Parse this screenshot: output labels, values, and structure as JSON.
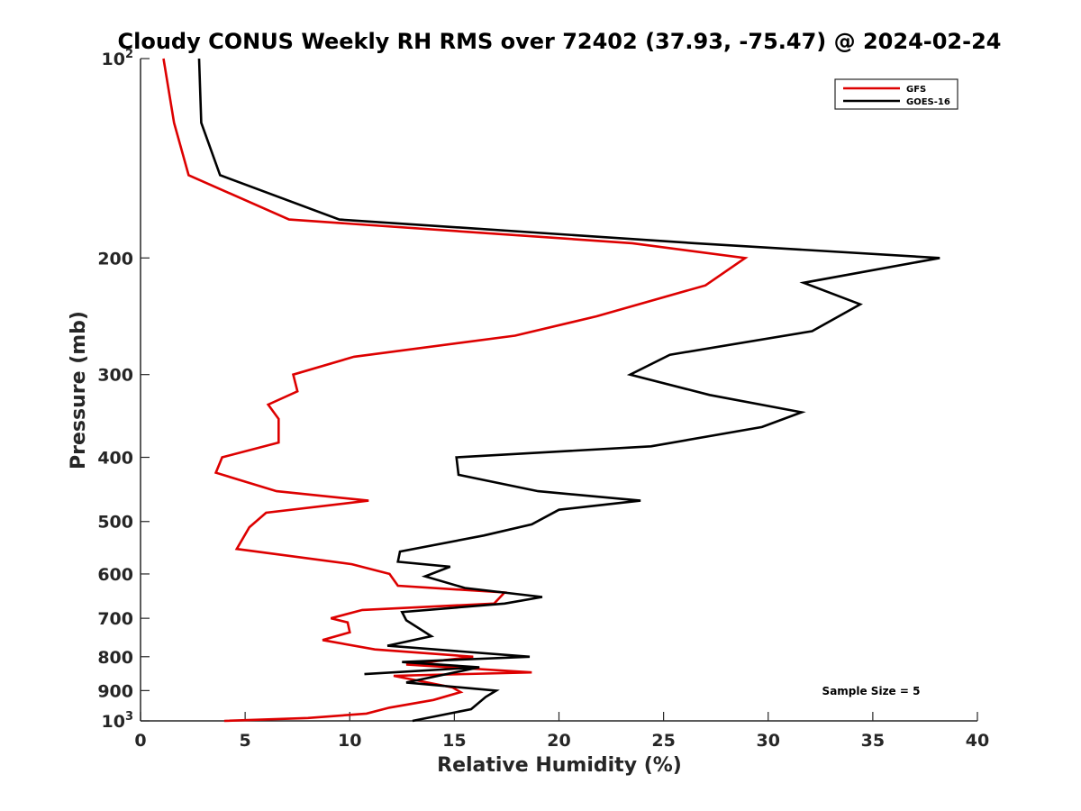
{
  "chart_data": {
    "type": "line",
    "title": "Cloudy CONUS Weekly RH RMS over 72402 (37.93, -75.47) @ 2024-02-24",
    "xlabel": "Relative Humidity (%)",
    "ylabel": "Pressure (mb)",
    "xlim": [
      0,
      40
    ],
    "ylim": [
      100,
      1000
    ],
    "y_scale": "log",
    "y_reversed": true,
    "grid": false,
    "legend_position": "top-right",
    "x_ticks": [
      {
        "value": 0,
        "label": "0"
      },
      {
        "value": 5,
        "label": "5"
      },
      {
        "value": 10,
        "label": "10"
      },
      {
        "value": 15,
        "label": "15"
      },
      {
        "value": 20,
        "label": "20"
      },
      {
        "value": 25,
        "label": "25"
      },
      {
        "value": 30,
        "label": "30"
      },
      {
        "value": 35,
        "label": "35"
      },
      {
        "value": 40,
        "label": "40"
      }
    ],
    "y_ticks": [
      {
        "value": 100,
        "base": "10",
        "exp": "2"
      },
      {
        "value": 200,
        "label": "200"
      },
      {
        "value": 300,
        "label": "300"
      },
      {
        "value": 400,
        "label": "400"
      },
      {
        "value": 500,
        "label": "500"
      },
      {
        "value": 600,
        "label": "600"
      },
      {
        "value": 700,
        "label": "700"
      },
      {
        "value": 800,
        "label": "800"
      },
      {
        "value": 900,
        "label": "900"
      },
      {
        "value": 1000,
        "base": "10",
        "exp": "3"
      }
    ],
    "annotation": "Sample Size = 5",
    "series": [
      {
        "name": "GFS",
        "color": "#dd0000",
        "points": [
          [
            1.1,
            100
          ],
          [
            1.6,
            125
          ],
          [
            2.3,
            150
          ],
          [
            7.1,
            175
          ],
          [
            23.5,
            190
          ],
          [
            28.9,
            200
          ],
          [
            27.0,
            220
          ],
          [
            21.8,
            245
          ],
          [
            17.9,
            262
          ],
          [
            10.2,
            282
          ],
          [
            7.3,
            300
          ],
          [
            7.5,
            318
          ],
          [
            6.1,
            333
          ],
          [
            6.6,
            350
          ],
          [
            6.6,
            380
          ],
          [
            3.9,
            400
          ],
          [
            3.6,
            422
          ],
          [
            6.5,
            450
          ],
          [
            10.9,
            465
          ],
          [
            6.0,
            485
          ],
          [
            5.2,
            510
          ],
          [
            4.6,
            550
          ],
          [
            10.1,
            580
          ],
          [
            11.9,
            600
          ],
          [
            12.3,
            625
          ],
          [
            17.4,
            640
          ],
          [
            16.9,
            665
          ],
          [
            10.6,
            680
          ],
          [
            9.1,
            700
          ],
          [
            9.9,
            710
          ],
          [
            10.0,
            735
          ],
          [
            8.7,
            755
          ],
          [
            11.2,
            780
          ],
          [
            15.9,
            800
          ],
          [
            14.5,
            810
          ],
          [
            12.7,
            822
          ],
          [
            18.7,
            845
          ],
          [
            12.1,
            855
          ],
          [
            14.9,
            890
          ],
          [
            15.3,
            905
          ],
          [
            14.0,
            930
          ],
          [
            11.9,
            955
          ],
          [
            10.8,
            975
          ],
          [
            8.0,
            990
          ],
          [
            4.0,
            1000
          ]
        ]
      },
      {
        "name": "GOES-16",
        "color": "#000000",
        "points": [
          [
            2.8,
            100
          ],
          [
            2.9,
            125
          ],
          [
            3.8,
            150
          ],
          [
            9.5,
            175
          ],
          [
            26.5,
            190
          ],
          [
            38.2,
            200
          ],
          [
            31.7,
            218
          ],
          [
            34.4,
            235
          ],
          [
            32.1,
            258
          ],
          [
            25.3,
            280
          ],
          [
            23.4,
            300
          ],
          [
            27.2,
            322
          ],
          [
            31.6,
            342
          ],
          [
            29.7,
            360
          ],
          [
            24.4,
            385
          ],
          [
            15.1,
            400
          ],
          [
            15.2,
            425
          ],
          [
            19.0,
            450
          ],
          [
            23.9,
            465
          ],
          [
            20.0,
            480
          ],
          [
            18.7,
            505
          ],
          [
            16.4,
            525
          ],
          [
            12.4,
            555
          ],
          [
            12.3,
            575
          ],
          [
            14.8,
            585
          ],
          [
            13.6,
            605
          ],
          [
            15.5,
            630
          ],
          [
            19.2,
            650
          ],
          [
            17.4,
            665
          ],
          [
            12.5,
            685
          ],
          [
            12.7,
            705
          ],
          [
            13.9,
            745
          ],
          [
            11.8,
            770
          ],
          [
            18.6,
            800
          ],
          [
            12.5,
            815
          ],
          [
            16.2,
            830
          ],
          [
            10.7,
            850
          ],
          [
            16.2,
            830
          ],
          [
            12.7,
            875
          ],
          [
            17.0,
            900
          ],
          [
            16.5,
            920
          ],
          [
            15.8,
            960
          ],
          [
            13.0,
            1000
          ]
        ]
      }
    ]
  }
}
